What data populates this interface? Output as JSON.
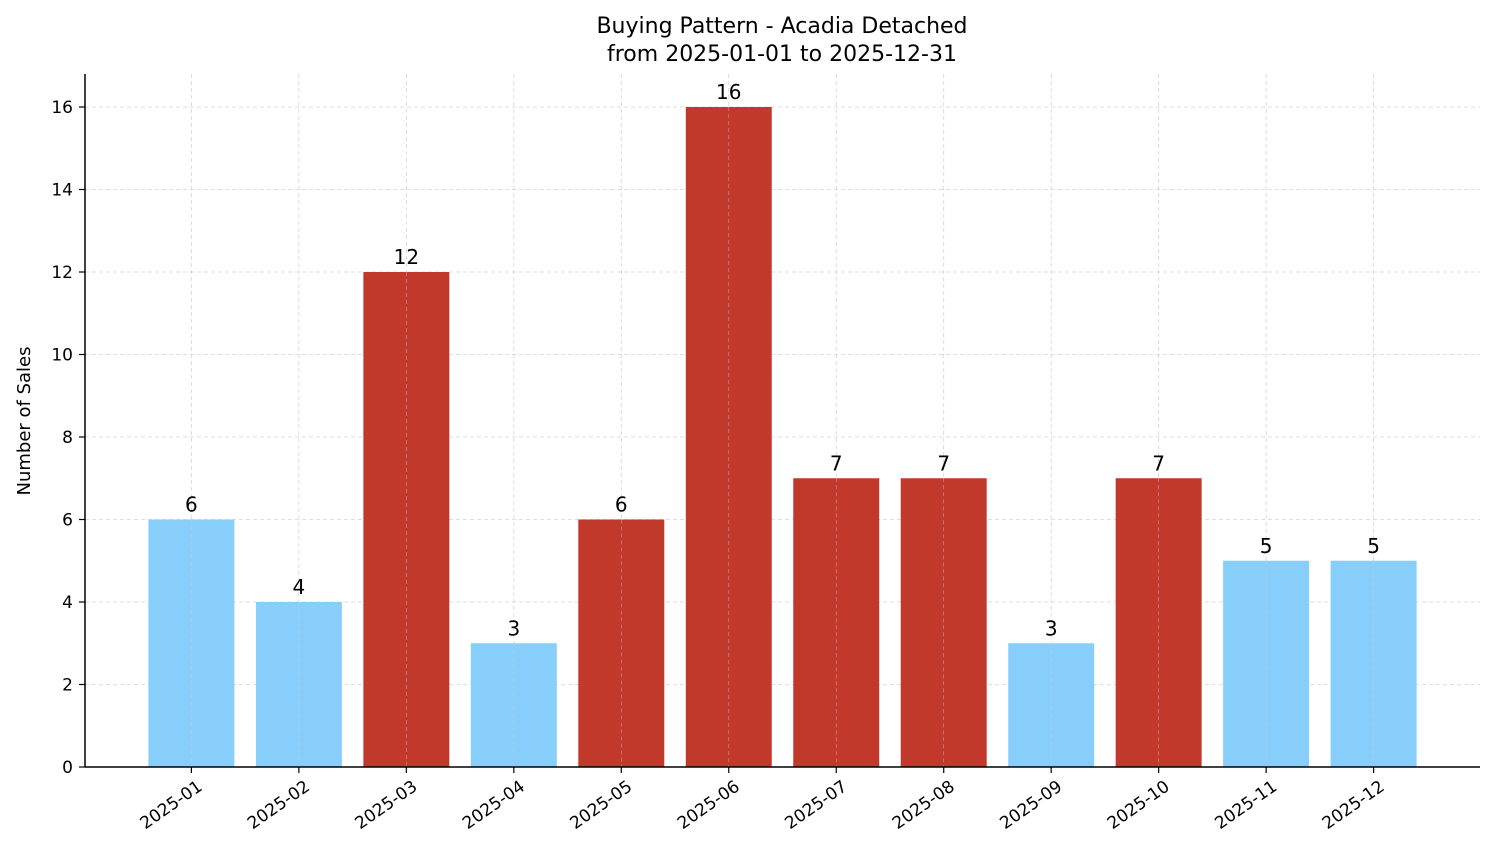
{
  "chart_data": {
    "type": "bar",
    "title": "Buying Pattern - Acadia Detached",
    "subtitle": "from 2025-01-01 to 2025-12-31",
    "xlabel": "",
    "ylabel": "Number of Sales",
    "categories": [
      "2025-01",
      "2025-02",
      "2025-03",
      "2025-04",
      "2025-05",
      "2025-06",
      "2025-07",
      "2025-08",
      "2025-09",
      "2025-10",
      "2025-11",
      "2025-12"
    ],
    "values": [
      6,
      4,
      12,
      3,
      6,
      16,
      7,
      7,
      3,
      7,
      5,
      5
    ],
    "bar_colors": [
      "#87CEFA",
      "#87CEFA",
      "#C0392B",
      "#87CEFA",
      "#C0392B",
      "#C0392B",
      "#C0392B",
      "#C0392B",
      "#87CEFA",
      "#C0392B",
      "#87CEFA",
      "#87CEFA"
    ],
    "ylim": [
      0,
      16.8
    ],
    "yticks": [
      0,
      2,
      4,
      6,
      8,
      10,
      12,
      14,
      16
    ],
    "grid": true,
    "data_labels": true
  }
}
